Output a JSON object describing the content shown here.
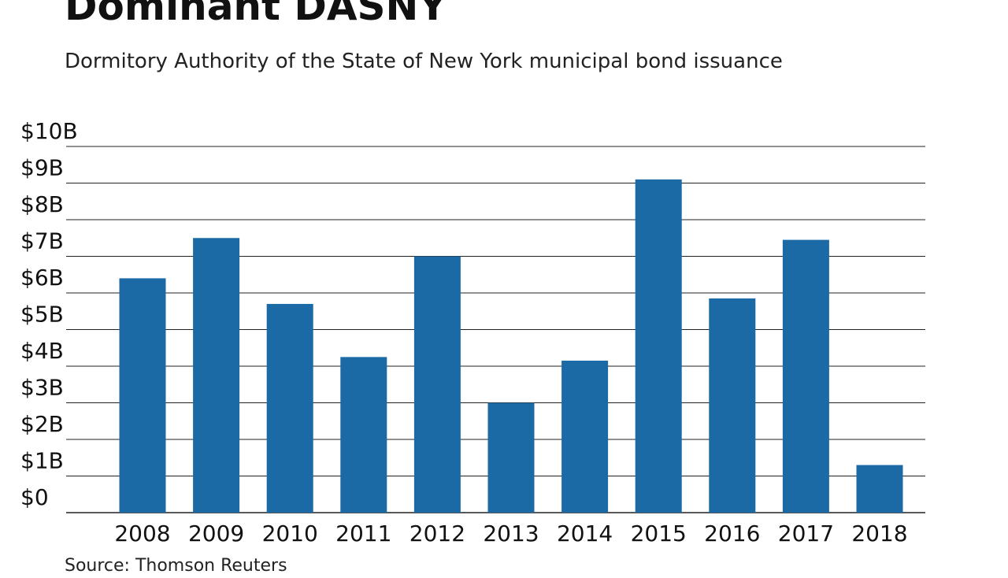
{
  "chart_data": {
    "type": "bar",
    "title": "Dominant DASNY",
    "subtitle": "Dormitory Authority of the State of New York municipal bond issuance",
    "source": "Source: Thomson Reuters",
    "categories": [
      "2008",
      "2009",
      "2010",
      "2011",
      "2012",
      "2013",
      "2014",
      "2015",
      "2016",
      "2017",
      "2018"
    ],
    "values": [
      6.4,
      7.5,
      5.7,
      4.25,
      7.0,
      3.0,
      4.15,
      9.1,
      5.85,
      7.45,
      1.3
    ],
    "unit": "billions of dollars",
    "ylim": [
      0,
      10
    ],
    "yticks": [
      0,
      1,
      2,
      3,
      4,
      5,
      6,
      7,
      8,
      9,
      10
    ],
    "ytick_labels": [
      "$0",
      "$1B",
      "$2B",
      "$3B",
      "$4B",
      "$5B",
      "$6B",
      "$7B",
      "$8B",
      "$9B",
      "$10B"
    ],
    "xlabel": "",
    "ylabel": "",
    "grid": true,
    "legend": "none",
    "bar_color": "#1b6aa5",
    "grid_color": "#222222"
  }
}
